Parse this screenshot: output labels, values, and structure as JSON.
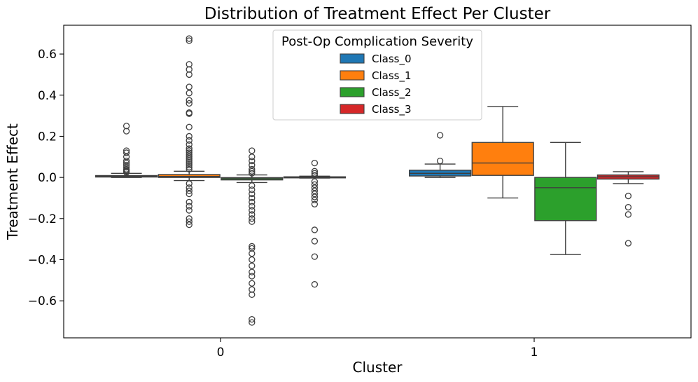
{
  "chart_data": {
    "type": "box",
    "title": "Distribution of Treatment Effect Per Cluster",
    "xlabel": "Cluster",
    "ylabel": "Treatment Effect",
    "categories": [
      "0",
      "1"
    ],
    "ylim": [
      -0.78,
      0.74
    ],
    "yticks": [
      {
        "value": 0.6,
        "label": "0.6"
      },
      {
        "value": 0.4,
        "label": "0.4"
      },
      {
        "value": 0.2,
        "label": "0.2"
      },
      {
        "value": 0.0,
        "label": "0.0"
      },
      {
        "value": -0.2,
        "label": "−0.2"
      },
      {
        "value": -0.4,
        "label": "−0.4"
      },
      {
        "value": -0.6,
        "label": "−0.6"
      }
    ],
    "grid": false,
    "legend": {
      "title": "Post-Op Complication Severity",
      "placement": "upper-center",
      "entries": [
        {
          "label": "Class_0",
          "color": "#1f77b4"
        },
        {
          "label": "Class_1",
          "color": "#ff7f0e"
        },
        {
          "label": "Class_2",
          "color": "#2ca02c"
        },
        {
          "label": "Class_3",
          "color": "#d62728"
        }
      ]
    },
    "series": [
      {
        "name": "Class_0",
        "color": "#1f77b4",
        "boxes": [
          {
            "category": "0",
            "whisker_low": 0.0,
            "q1": 0.002,
            "median": 0.005,
            "q3": 0.009,
            "whisker_high": 0.02,
            "outliers": [
              0.25,
              0.225,
              0.13,
              0.12,
              0.1,
              0.08,
              0.07,
              0.06,
              0.05,
              0.04,
              0.035,
              0.03,
              0.025
            ]
          },
          {
            "category": "1",
            "whisker_low": 0.0,
            "q1": 0.007,
            "median": 0.02,
            "q3": 0.035,
            "whisker_high": 0.065,
            "outliers": [
              0.205,
              0.08
            ]
          }
        ]
      },
      {
        "name": "Class_1",
        "color": "#ff7f0e",
        "boxes": [
          {
            "category": "0",
            "whisker_low": -0.015,
            "q1": 0.0,
            "median": 0.005,
            "q3": 0.014,
            "whisker_high": 0.03,
            "outliers": [
              0.675,
              0.665,
              0.55,
              0.525,
              0.5,
              0.44,
              0.41,
              0.375,
              0.36,
              0.315,
              0.31,
              0.245,
              0.2,
              0.18,
              0.16,
              0.14,
              0.13,
              0.12,
              0.11,
              0.1,
              0.09,
              0.08,
              0.07,
              0.06,
              0.05,
              0.04,
              -0.03,
              -0.05,
              -0.065,
              -0.08,
              -0.12,
              -0.14,
              -0.16,
              -0.2,
              -0.215,
              -0.23
            ]
          },
          {
            "category": "1",
            "whisker_low": -0.1,
            "q1": 0.01,
            "median": 0.07,
            "q3": 0.17,
            "whisker_high": 0.345,
            "outliers": []
          }
        ]
      },
      {
        "name": "Class_2",
        "color": "#2ca02c",
        "boxes": [
          {
            "category": "0",
            "whisker_low": -0.025,
            "q1": -0.012,
            "median": -0.006,
            "q3": -0.001,
            "whisker_high": 0.012,
            "outliers": [
              0.13,
              0.1,
              0.08,
              0.06,
              0.04,
              0.03,
              0.02,
              -0.04,
              -0.06,
              -0.08,
              -0.1,
              -0.12,
              -0.14,
              -0.16,
              -0.18,
              -0.2,
              -0.215,
              -0.335,
              -0.345,
              -0.37,
              -0.4,
              -0.43,
              -0.46,
              -0.48,
              -0.515,
              -0.545,
              -0.57,
              -0.69,
              -0.705
            ]
          },
          {
            "category": "1",
            "whisker_low": -0.375,
            "q1": -0.21,
            "median": -0.05,
            "q3": 0.0,
            "whisker_high": 0.17,
            "outliers": []
          }
        ]
      },
      {
        "name": "Class_3",
        "color": "#d62728",
        "boxes": [
          {
            "category": "0",
            "whisker_low": -0.003,
            "q1": -0.001,
            "median": 0.001,
            "q3": 0.003,
            "whisker_high": 0.006,
            "outliers": [
              0.07,
              0.03,
              0.02,
              0.01,
              -0.02,
              -0.035,
              -0.05,
              -0.065,
              -0.08,
              -0.095,
              -0.11,
              -0.13,
              -0.255,
              -0.31,
              -0.385,
              -0.52
            ]
          },
          {
            "category": "1",
            "whisker_low": -0.03,
            "q1": -0.008,
            "median": 0.003,
            "q3": 0.012,
            "whisker_high": 0.028,
            "outliers": [
              -0.09,
              -0.145,
              -0.18,
              -0.32
            ]
          }
        ]
      }
    ]
  }
}
